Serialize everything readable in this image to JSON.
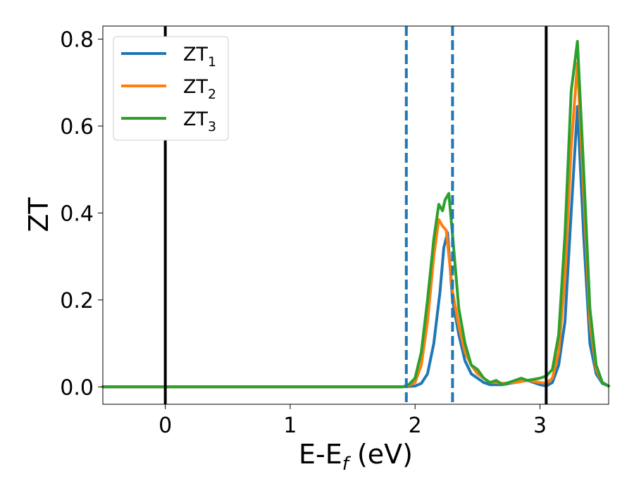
{
  "chart_data": {
    "type": "line",
    "title": "",
    "xlabel": {
      "main": "E-E",
      "sub": "f",
      "suffix": " (eV)"
    },
    "ylabel": "ZT",
    "xlim": [
      -0.5,
      3.55
    ],
    "ylim": [
      -0.04,
      0.83
    ],
    "xticks": [
      0,
      1,
      2,
      3
    ],
    "xtick_labels": [
      "0",
      "1",
      "2",
      "3"
    ],
    "yticks": [
      0.0,
      0.2,
      0.4,
      0.6,
      0.8
    ],
    "ytick_labels": [
      "0.0",
      "0.2",
      "0.4",
      "0.6",
      "0.8"
    ],
    "grid": false,
    "legend_placement": "upper-left",
    "vertical_lines": [
      {
        "x": 0.0,
        "style": "solid",
        "color": "#000000"
      },
      {
        "x": 3.05,
        "style": "solid",
        "color": "#000000"
      },
      {
        "x": 1.93,
        "style": "dashed",
        "color": "#1f77b4"
      },
      {
        "x": 2.3,
        "style": "dashed",
        "color": "#1f77b4"
      }
    ],
    "series": [
      {
        "name": "ZT",
        "name_sub": "1",
        "color": "#1f77b4",
        "x": [
          -0.5,
          1.9,
          2.0,
          2.05,
          2.1,
          2.15,
          2.2,
          2.23,
          2.26,
          2.3,
          2.35,
          2.4,
          2.45,
          2.5,
          2.55,
          2.6,
          2.65,
          2.7,
          2.8,
          2.9,
          3.0,
          3.05,
          3.1,
          3.15,
          3.2,
          3.25,
          3.3,
          3.35,
          3.4,
          3.45,
          3.5,
          3.55
        ],
        "y": [
          0.0,
          0.0,
          0.002,
          0.008,
          0.03,
          0.1,
          0.22,
          0.32,
          0.355,
          0.2,
          0.12,
          0.06,
          0.03,
          0.02,
          0.01,
          0.005,
          0.005,
          0.005,
          0.01,
          0.015,
          0.005,
          0.002,
          0.01,
          0.05,
          0.15,
          0.4,
          0.645,
          0.35,
          0.1,
          0.03,
          0.008,
          0.002
        ]
      },
      {
        "name": "ZT",
        "name_sub": "2",
        "color": "#ff7f0e",
        "x": [
          -0.5,
          1.9,
          1.95,
          2.0,
          2.05,
          2.1,
          2.15,
          2.19,
          2.22,
          2.25,
          2.3,
          2.35,
          2.4,
          2.45,
          2.5,
          2.55,
          2.6,
          2.65,
          2.7,
          2.8,
          2.9,
          3.0,
          3.05,
          3.1,
          3.15,
          3.2,
          3.25,
          3.3,
          3.35,
          3.4,
          3.45,
          3.5,
          3.55
        ],
        "y": [
          0.0,
          0.0,
          0.003,
          0.01,
          0.05,
          0.15,
          0.3,
          0.385,
          0.37,
          0.36,
          0.22,
          0.14,
          0.08,
          0.05,
          0.03,
          0.02,
          0.01,
          0.01,
          0.008,
          0.01,
          0.015,
          0.01,
          0.008,
          0.02,
          0.08,
          0.25,
          0.55,
          0.745,
          0.45,
          0.15,
          0.04,
          0.01,
          0.002
        ]
      },
      {
        "name": "ZT",
        "name_sub": "3",
        "color": "#2ca02c",
        "x": [
          -0.5,
          1.9,
          1.95,
          2.0,
          2.05,
          2.1,
          2.15,
          2.19,
          2.22,
          2.24,
          2.27,
          2.3,
          2.35,
          2.4,
          2.45,
          2.5,
          2.55,
          2.6,
          2.65,
          2.7,
          2.75,
          2.8,
          2.85,
          2.9,
          3.0,
          3.05,
          3.1,
          3.15,
          3.2,
          3.25,
          3.3,
          3.35,
          3.4,
          3.45,
          3.5,
          3.55
        ],
        "y": [
          0.0,
          0.0,
          0.005,
          0.02,
          0.08,
          0.2,
          0.34,
          0.42,
          0.405,
          0.43,
          0.445,
          0.35,
          0.18,
          0.1,
          0.05,
          0.04,
          0.02,
          0.01,
          0.015,
          0.005,
          0.01,
          0.015,
          0.02,
          0.015,
          0.02,
          0.025,
          0.04,
          0.12,
          0.35,
          0.68,
          0.795,
          0.5,
          0.18,
          0.05,
          0.01,
          0.002
        ]
      }
    ]
  }
}
